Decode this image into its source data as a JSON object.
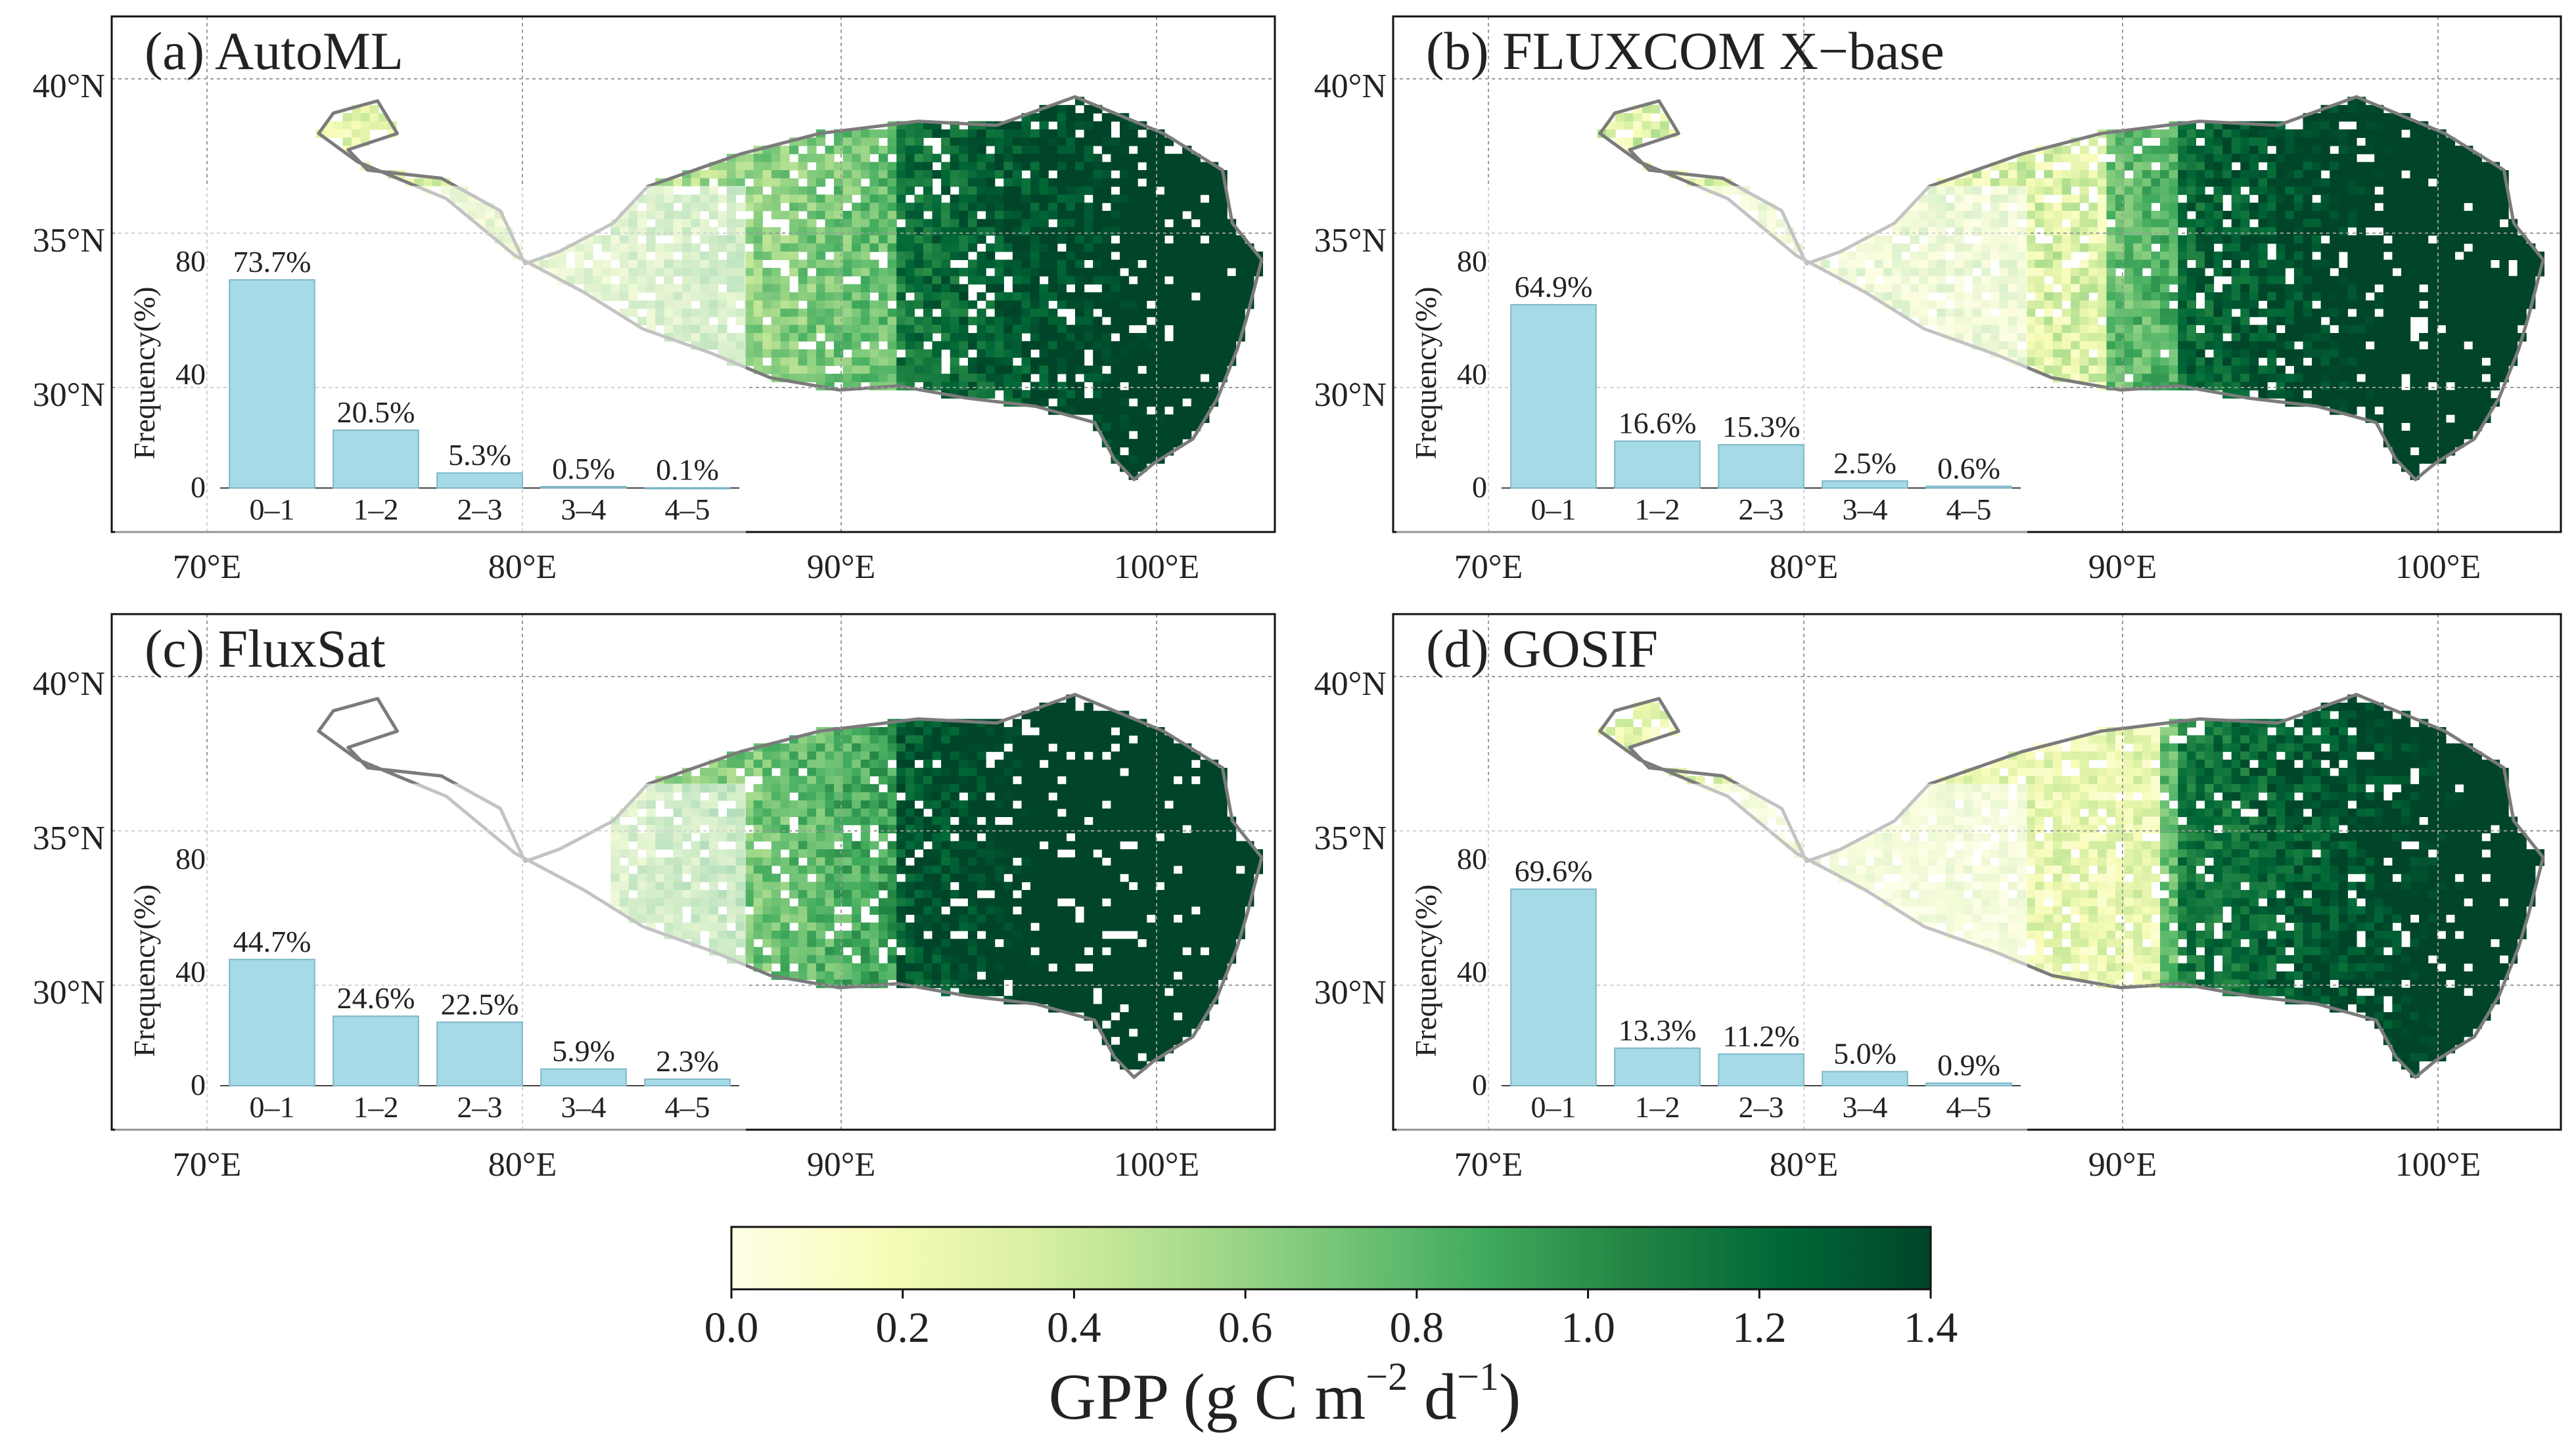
{
  "colors": {
    "ramp": [
      "#ffffe5",
      "#f7fcb9",
      "#d9f0a3",
      "#addd8e",
      "#78c679",
      "#41ab5d",
      "#238443",
      "#006837",
      "#004529"
    ],
    "bar": "#a6dae6",
    "bar_stroke": "#7fb7c6",
    "border": "#111111",
    "grid": "#9a9a9a",
    "outline": "#7b7b7b"
  },
  "axes": {
    "lat_ticks": [
      "40°N",
      "35°N",
      "30°N"
    ],
    "lon_ticks": [
      "70°E",
      "80°E",
      "90°E",
      "100°E"
    ]
  },
  "panels": [
    {
      "title": "(a) AutoML",
      "intensity": 0.5,
      "ylabel": "Frequency(%)",
      "yticks": [
        "0",
        "40",
        "80"
      ],
      "chart_data": {
        "type": "bar",
        "categories": [
          "0–1",
          "1–2",
          "2–3",
          "3–4",
          "4–5"
        ],
        "values": [
          73.7,
          20.5,
          5.3,
          0.5,
          0.1
        ],
        "labels": [
          "73.7%",
          "20.5%",
          "5.3%",
          "0.5%",
          "0.1%"
        ],
        "ylim": [
          0,
          100
        ]
      }
    },
    {
      "title": "(b) FLUXCOM X−base",
      "intensity": 0.62,
      "ylabel": "Frequency(%)",
      "yticks": [
        "0",
        "40",
        "80"
      ],
      "chart_data": {
        "type": "bar",
        "categories": [
          "0–1",
          "1–2",
          "2–3",
          "3–4",
          "4–5"
        ],
        "values": [
          64.9,
          16.6,
          15.3,
          2.5,
          0.6
        ],
        "labels": [
          "64.9%",
          "16.6%",
          "15.3%",
          "2.5%",
          "0.6%"
        ],
        "ylim": [
          0,
          100
        ]
      }
    },
    {
      "title": "(c) FluxSat",
      "intensity": 0.8,
      "ylabel": "Frequency(%)",
      "yticks": [
        "0",
        "40",
        "80"
      ],
      "chart_data": {
        "type": "bar",
        "categories": [
          "0–1",
          "1–2",
          "2–3",
          "3–4",
          "4–5"
        ],
        "values": [
          44.7,
          24.6,
          22.5,
          5.9,
          2.3
        ],
        "labels": [
          "44.7%",
          "24.6%",
          "22.5%",
          "5.9%",
          "2.3%"
        ],
        "ylim": [
          0,
          100
        ]
      }
    },
    {
      "title": "(d) GOSIF",
      "intensity": 0.45,
      "ylabel": "Frequency(%)",
      "yticks": [
        "0",
        "40",
        "80"
      ],
      "chart_data": {
        "type": "bar",
        "categories": [
          "0–1",
          "1–2",
          "2–3",
          "3–4",
          "4–5"
        ],
        "values": [
          69.6,
          13.3,
          11.2,
          5.0,
          0.9
        ],
        "labels": [
          "69.6%",
          "13.3%",
          "11.2%",
          "5.0%",
          "0.9%"
        ],
        "ylim": [
          0,
          100
        ]
      }
    }
  ],
  "colorbar": {
    "ticks": [
      "0.0",
      "0.2",
      "0.4",
      "0.6",
      "0.8",
      "1.0",
      "1.2",
      "1.4"
    ],
    "range": [
      0,
      1.4
    ],
    "label": "GPP (g C m",
    "label_sup1": "−2",
    "label_mid": " d",
    "label_sup2": "−1",
    "label_end": ")"
  }
}
